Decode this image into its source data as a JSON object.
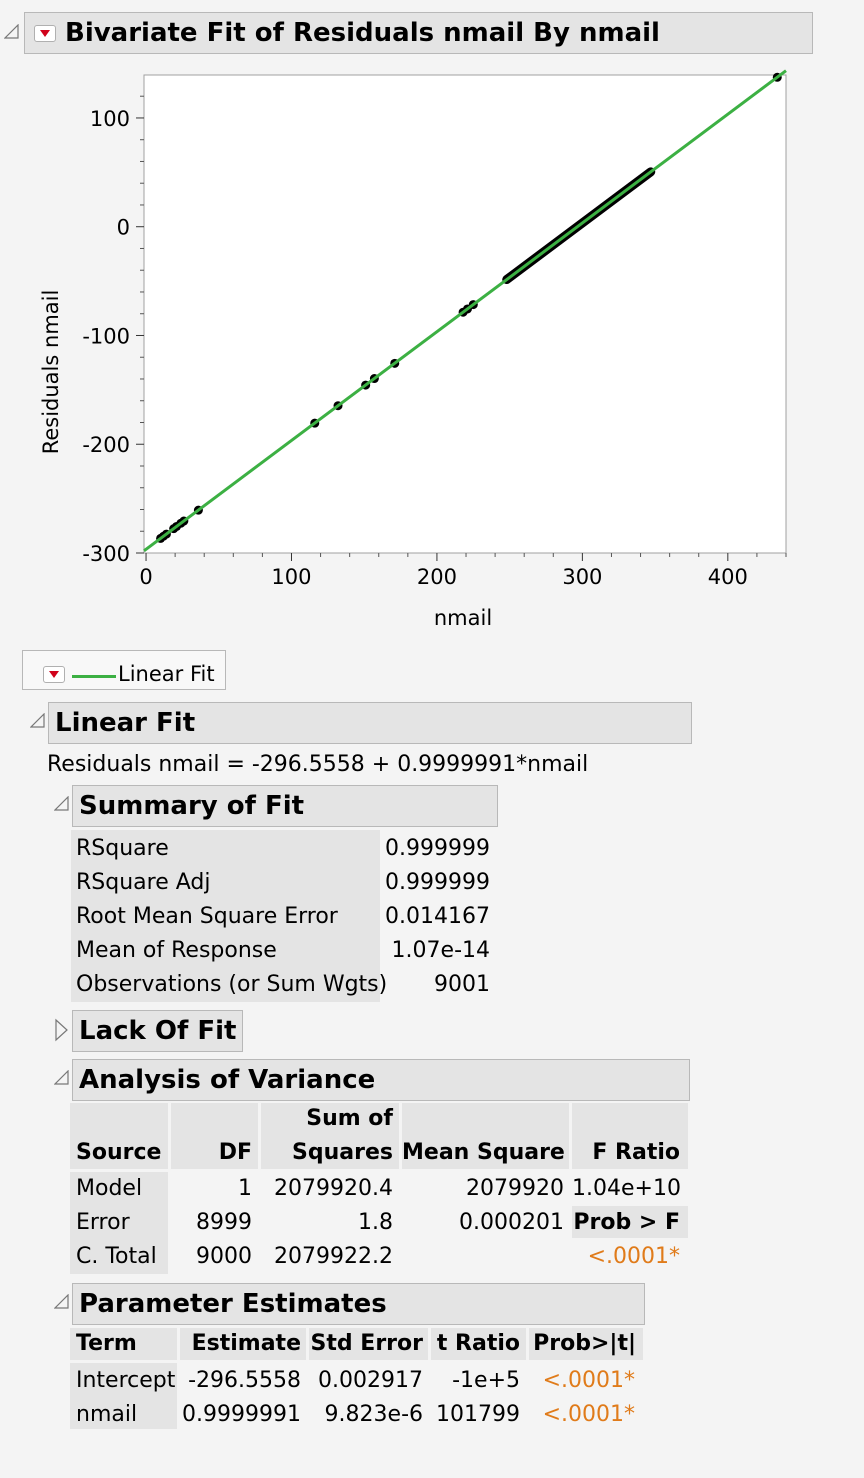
{
  "report": {
    "title": "Bivariate Fit of Residuals nmail By nmail",
    "legend_label": "Linear Fit"
  },
  "chart_data": {
    "type": "scatter",
    "xlabel": "nmail",
    "ylabel": "Residuals nmail",
    "xlim": [
      0,
      440
    ],
    "ylim": [
      -300,
      140
    ],
    "xticks": [
      0,
      100,
      200,
      300,
      400
    ],
    "yticks": [
      -300,
      -200,
      -100,
      0,
      100
    ],
    "xtick_labels": [
      "0",
      "100",
      "200",
      "300",
      "400"
    ],
    "ytick_labels": [
      "-300",
      "-200",
      "-100",
      "0",
      "100"
    ],
    "grid": false,
    "fit_line": {
      "intercept": -296.5558,
      "slope": 0.9999991,
      "color": "#3cb043"
    },
    "point_color": "#000000",
    "points": [
      [
        10,
        -286.6
      ],
      [
        12,
        -284.6
      ],
      [
        14,
        -282.6
      ],
      [
        19,
        -277.6
      ],
      [
        21,
        -275.6
      ],
      [
        24,
        -272.6
      ],
      [
        26,
        -270.6
      ],
      [
        36,
        -260.6
      ],
      [
        116,
        -180.6
      ],
      [
        132,
        -164.6
      ],
      [
        151,
        -145.6
      ],
      [
        157,
        -139.6
      ],
      [
        171,
        -125.6
      ],
      [
        218,
        -78.6
      ],
      [
        221,
        -75.6
      ],
      [
        225,
        -71.6
      ]
    ],
    "dense_segment": {
      "x_from": 248,
      "x_to": 347
    },
    "outlier_points": [
      [
        434,
        137.4
      ]
    ]
  },
  "linear_fit": {
    "title": "Linear Fit",
    "equation": "Residuals nmail = -296.5558 + 0.9999991*nmail"
  },
  "summary_of_fit": {
    "title": "Summary of Fit",
    "rows": [
      {
        "label": "RSquare",
        "value": "0.999999"
      },
      {
        "label": "RSquare Adj",
        "value": "0.999999"
      },
      {
        "label": "Root Mean Square Error",
        "value": "0.014167"
      },
      {
        "label": "Mean of Response",
        "value": "1.07e-14"
      },
      {
        "label": "Observations (or Sum Wgts)",
        "value": "9001"
      }
    ]
  },
  "lack_of_fit": {
    "title": "Lack Of Fit"
  },
  "anova": {
    "title": "Analysis of Variance",
    "headers": {
      "source": "Source",
      "df": "DF",
      "ss_line1": "Sum of",
      "ss_line2": "Squares",
      "ms": "Mean Square",
      "f": "F Ratio"
    },
    "rows": [
      {
        "source": "Model",
        "df": "1",
        "ss": "2079920.4",
        "ms": "2079920",
        "extra": "1.04e+10"
      },
      {
        "source": "Error",
        "df": "8999",
        "ss": "1.8",
        "ms": "0.000201",
        "extra": "Prob > F"
      },
      {
        "source": "C. Total",
        "df": "9000",
        "ss": "2079922.2",
        "ms": "",
        "extra": "<.0001*"
      }
    ]
  },
  "parameter_estimates": {
    "title": "Parameter Estimates",
    "headers": [
      "Term",
      "Estimate",
      "Std Error",
      "t Ratio",
      "Prob>|t|"
    ],
    "rows": [
      {
        "term": "Intercept",
        "estimate": "-296.5558",
        "stderr": "0.002917",
        "t": "-1e+5",
        "p": "<.0001*"
      },
      {
        "term": "nmail",
        "estimate": "0.9999991",
        "stderr": "9.823e-6",
        "t": "101799",
        "p": "<.0001*"
      }
    ]
  }
}
